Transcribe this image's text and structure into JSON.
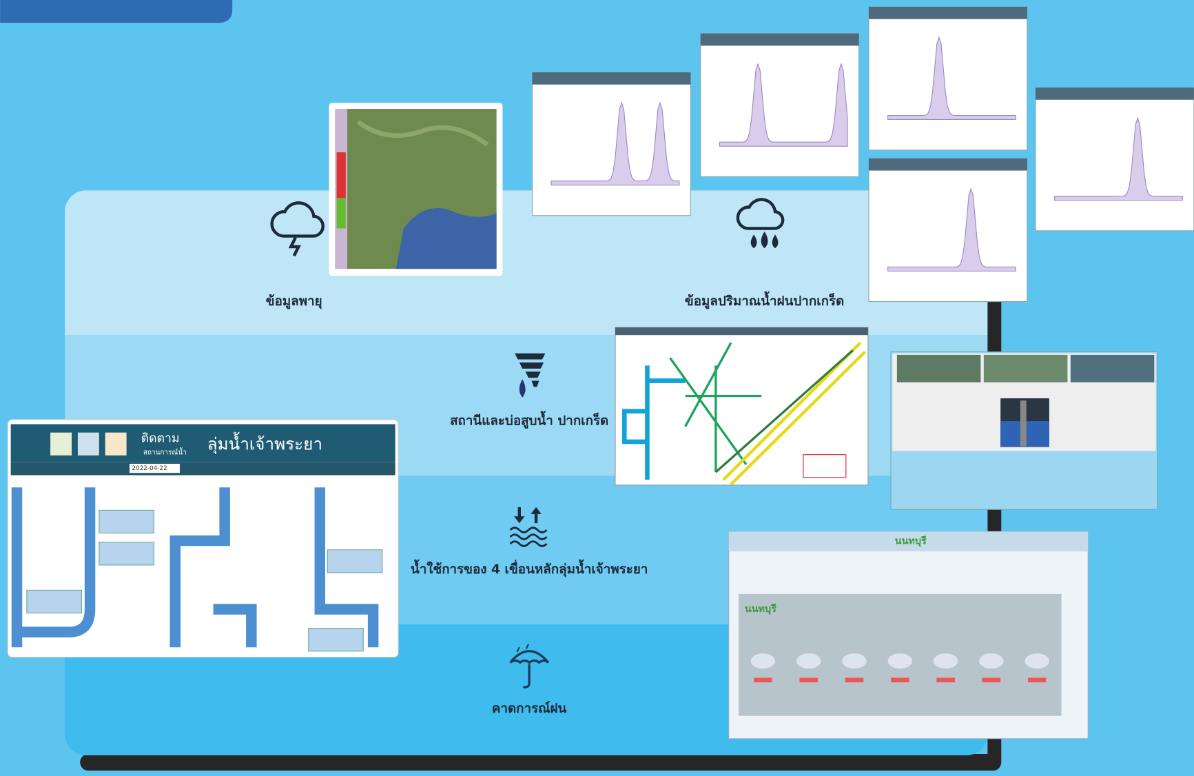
{
  "sections": [
    {
      "label": "ข้อมูลพายุ"
    },
    {
      "label": "ข้อมูลปริมาณน้ำฝนปากเกร็ด"
    },
    {
      "label": "สถานีและบ่อสูบน้ำ ปากเกร็ด"
    },
    {
      "label": "น้ำใช้การของ 4 เขื่อนหลักลุ่มน้ำเจ้าพระยา"
    },
    {
      "label": "คาดการณ์ฝน"
    }
  ],
  "dashboard": {
    "kicker": "ติดตาม",
    "kicker_sub": "สถานการณ์น้ำ",
    "title": "ลุ่มน้ำเจ้าพระยา",
    "date": "2022-04-22"
  },
  "weather": {
    "province": "นนทบุรี"
  }
}
